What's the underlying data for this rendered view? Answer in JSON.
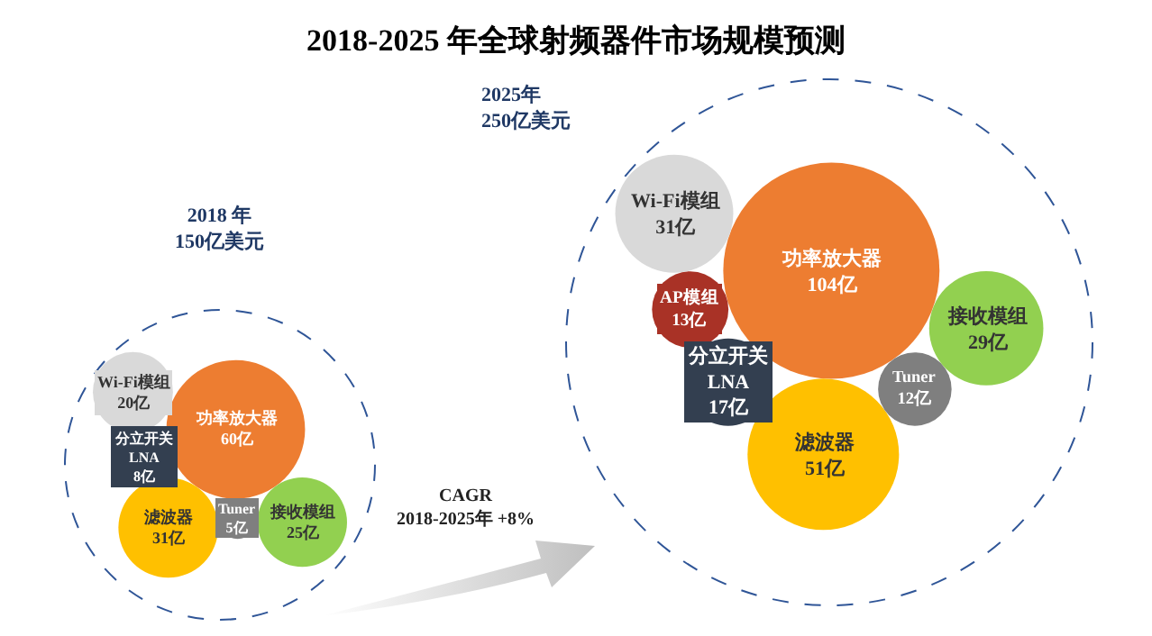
{
  "chart_data": [
    {
      "type": "other",
      "title": "2018-2025 年全球射频器件市场规模预测",
      "subtitle": "2018 年\n150亿美元",
      "categories": [
        "功率放大器",
        "Wi-Fi模组",
        "分立开关\nLNA",
        "滤波器",
        "Tuner",
        "接收模组"
      ],
      "values": [
        60,
        20,
        8,
        31,
        5,
        25
      ],
      "value_labels": [
        "60亿",
        "20亿",
        "8亿",
        "31亿",
        "5亿",
        "25亿"
      ],
      "colors": [
        "#ed7d31",
        "#d9d9d9",
        "#333f50",
        "#ffc000",
        "#7f7f7f",
        "#92d050"
      ],
      "annotations": [
        "CAGR\n2018-2025年 +8%"
      ]
    },
    {
      "type": "other",
      "subtitle": "2025年\n250亿美元",
      "categories": [
        "功率放大器",
        "Wi-Fi模组",
        "AP模组",
        "分立开关\nLNA",
        "滤波器",
        "Tuner",
        "接收模组"
      ],
      "values": [
        104,
        31,
        13,
        17,
        51,
        12,
        29
      ],
      "value_labels": [
        "104亿",
        "31亿",
        "13亿",
        "17亿",
        "51亿",
        "12亿",
        "29亿"
      ],
      "colors": [
        "#ed7d31",
        "#d9d9d9",
        "#a93226",
        "#333f50",
        "#ffc000",
        "#7f7f7f",
        "#92d050"
      ]
    }
  ]
}
